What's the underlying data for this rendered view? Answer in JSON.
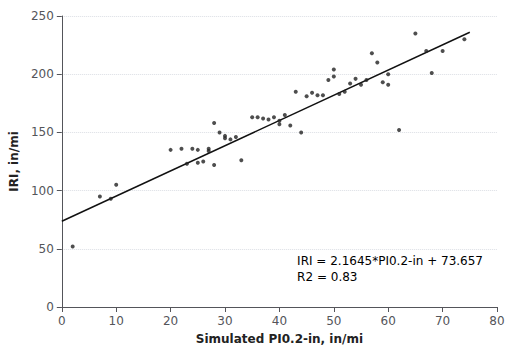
{
  "chart_data": {
    "type": "scatter",
    "x_label": "Simulated PI0.2-in, in/mi",
    "y_label": "IRI, in/mi",
    "annotations": [
      "IRI = 2.1645*PI0.2-in + 73.657",
      "R2 = 0.83"
    ],
    "series": [
      {
        "type": "scatter",
        "color": "#222222",
        "marker": "circle",
        "x": [
          2,
          7,
          9,
          10,
          20,
          22,
          23,
          24,
          25,
          25,
          26,
          27,
          27,
          28,
          28,
          29,
          30,
          30,
          31,
          32,
          33,
          35,
          36,
          37,
          38,
          39,
          40,
          40,
          41,
          42,
          43,
          44,
          45,
          46,
          47,
          48,
          49,
          50,
          50,
          51,
          52,
          53,
          54,
          55,
          56,
          57,
          58,
          59,
          60,
          60,
          62,
          65,
          67,
          68,
          70,
          74
        ],
        "values": [
          52,
          95,
          93,
          105,
          135,
          136,
          123,
          136,
          135,
          124,
          125,
          134,
          136,
          158,
          122,
          150,
          145,
          147,
          144,
          146,
          126,
          163,
          163,
          162,
          161,
          163,
          160,
          157,
          165,
          156,
          185,
          150,
          181,
          184,
          182,
          182,
          195,
          204,
          198,
          183,
          185,
          192,
          196,
          191,
          195,
          218,
          210,
          193,
          200,
          191,
          152,
          235,
          220,
          201,
          220,
          230
        ]
      },
      {
        "type": "line",
        "color": "#111111",
        "line_style": "solid",
        "x": [
          0,
          75
        ],
        "values": [
          73.657,
          235.9945
        ]
      }
    ],
    "xlim": [
      0,
      80
    ],
    "ylim": [
      0,
      250
    ],
    "xticks": [
      0,
      10,
      20,
      30,
      40,
      50,
      60,
      70,
      80
    ],
    "yticks": [
      0,
      50,
      100,
      150,
      200,
      250
    ],
    "grid": "y"
  }
}
